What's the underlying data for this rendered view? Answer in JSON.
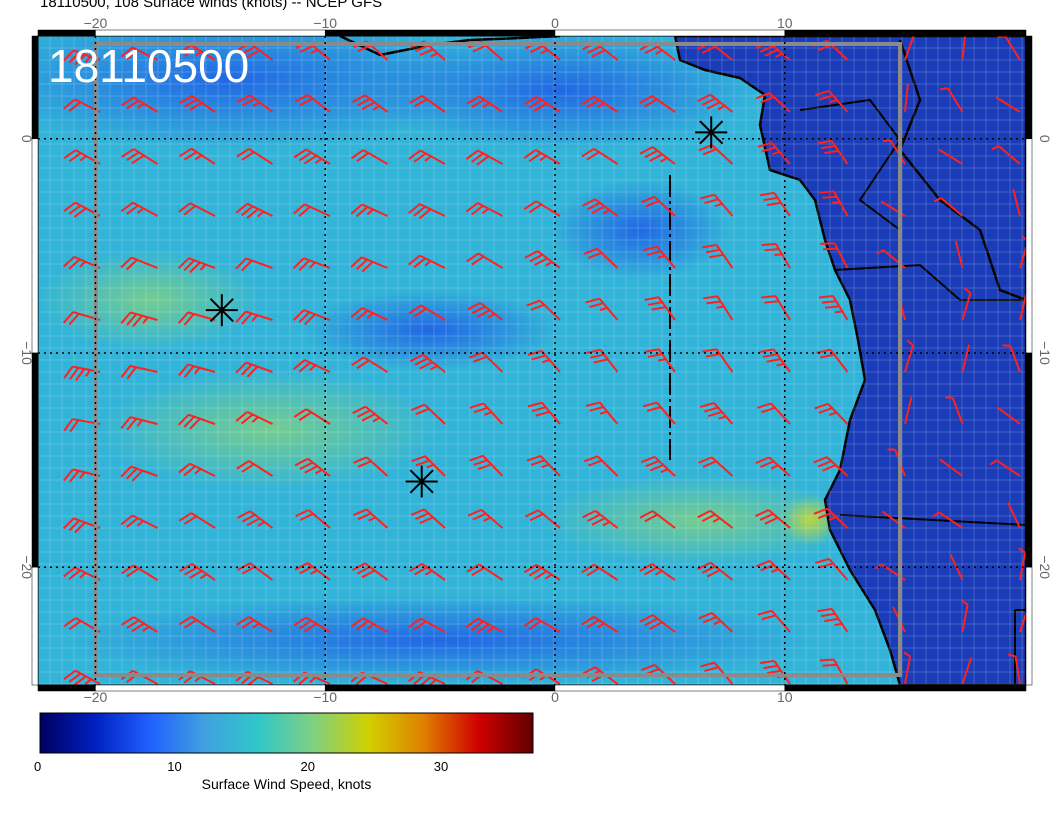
{
  "title": "18110500, 108 Surface winds (knots) -- NCEP GFS",
  "stamp": "18110500",
  "axes": {
    "lon_ticks": [
      "−20",
      "−10",
      "0",
      "10"
    ],
    "lat_ticks": [
      "0",
      "−10",
      "−20"
    ]
  },
  "colorbar": {
    "title": "Surface Wind Speed, knots",
    "ticks": [
      "0",
      "10",
      "20",
      "30"
    ],
    "range": [
      0,
      37
    ],
    "colors": [
      "#000060",
      "#0020c0",
      "#2060ff",
      "#40a0e0",
      "#30c8c8",
      "#80d080",
      "#d0d000",
      "#e08000",
      "#d00000",
      "#600000"
    ]
  },
  "map": {
    "extent_lon": [
      -22.5,
      20.5
    ],
    "extent_lat": [
      4.8,
      -25.5
    ],
    "grid_lons": [
      -20,
      -10,
      0,
      10
    ],
    "grid_lats": [
      0,
      -10,
      -20
    ],
    "ocean_color": "#30b8d8",
    "land_color": "#1030a8",
    "barb_color": "#ff2020",
    "storm_centers": [
      [
        -14.5,
        -8.0
      ],
      [
        -5.8,
        -16.0
      ],
      [
        6.8,
        0.3
      ]
    ]
  }
}
